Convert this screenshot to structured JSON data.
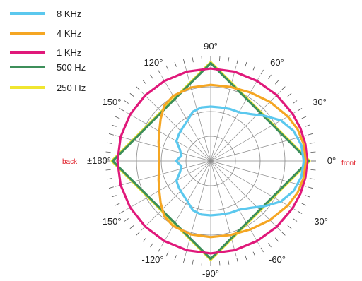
{
  "chart_data": {
    "type": "polar",
    "angle_labels": [
      {
        "angle": 90,
        "text": "90°"
      },
      {
        "angle": 60,
        "text": "60°"
      },
      {
        "angle": 120,
        "text": "120°"
      },
      {
        "angle": 30,
        "text": "30°"
      },
      {
        "angle": 150,
        "text": "150°"
      },
      {
        "angle": 0,
        "text": "0°"
      },
      {
        "angle": 180,
        "text": "±180°"
      },
      {
        "angle": -30,
        "text": "-30°"
      },
      {
        "angle": -150,
        "text": "-150°"
      },
      {
        "angle": -60,
        "text": "-60°"
      },
      {
        "angle": -120,
        "text": "-120°"
      },
      {
        "angle": -90,
        "text": "-90°"
      }
    ],
    "side_labels": {
      "back": "back",
      "front": "front"
    },
    "series": [
      {
        "name": "250 Hz",
        "color": "#f0e631",
        "points": [
          [
            0,
            1.0
          ],
          [
            90,
            1.0
          ],
          [
            180,
            1.0
          ],
          [
            270,
            1.0
          ]
        ]
      },
      {
        "name": "500 Hz",
        "color": "#3d8f5a",
        "points": [
          [
            0,
            0.99
          ],
          [
            90,
            0.99
          ],
          [
            180,
            0.99
          ],
          [
            270,
            0.99
          ]
        ]
      },
      {
        "name": "1 KHz",
        "color": "#e0187a",
        "points": [
          [
            0,
            0.975
          ],
          [
            10,
            0.972
          ],
          [
            20,
            0.965
          ],
          [
            30,
            0.955
          ],
          [
            45,
            0.942
          ],
          [
            60,
            0.935
          ],
          [
            75,
            0.935
          ],
          [
            90,
            0.935
          ],
          [
            105,
            0.935
          ],
          [
            120,
            0.935
          ],
          [
            135,
            0.937
          ],
          [
            150,
            0.94
          ],
          [
            165,
            0.942
          ],
          [
            180,
            0.942
          ],
          [
            195,
            0.942
          ],
          [
            210,
            0.94
          ],
          [
            225,
            0.937
          ],
          [
            240,
            0.935
          ],
          [
            255,
            0.935
          ],
          [
            270,
            0.935
          ],
          [
            285,
            0.935
          ],
          [
            300,
            0.935
          ],
          [
            315,
            0.942
          ],
          [
            330,
            0.955
          ],
          [
            340,
            0.965
          ],
          [
            350,
            0.972
          ],
          [
            360,
            0.975
          ]
        ]
      },
      {
        "name": "4 KHz",
        "color": "#f5a623",
        "points": [
          [
            0,
            0.96
          ],
          [
            10,
            0.955
          ],
          [
            20,
            0.935
          ],
          [
            30,
            0.9
          ],
          [
            45,
            0.845
          ],
          [
            60,
            0.8
          ],
          [
            75,
            0.775
          ],
          [
            90,
            0.77
          ],
          [
            105,
            0.77
          ],
          [
            120,
            0.76
          ],
          [
            130,
            0.73
          ],
          [
            140,
            0.66
          ],
          [
            150,
            0.6
          ],
          [
            160,
            0.56
          ],
          [
            170,
            0.53
          ],
          [
            180,
            0.52
          ],
          [
            190,
            0.53
          ],
          [
            200,
            0.56
          ],
          [
            210,
            0.6
          ],
          [
            220,
            0.66
          ],
          [
            230,
            0.73
          ],
          [
            240,
            0.76
          ],
          [
            255,
            0.77
          ],
          [
            270,
            0.77
          ],
          [
            285,
            0.775
          ],
          [
            300,
            0.8
          ],
          [
            315,
            0.845
          ],
          [
            330,
            0.9
          ],
          [
            340,
            0.935
          ],
          [
            350,
            0.955
          ],
          [
            360,
            0.96
          ]
        ]
      },
      {
        "name": "8 KHz",
        "color": "#5bc8ee",
        "points": [
          [
            0,
            0.94
          ],
          [
            10,
            0.93
          ],
          [
            20,
            0.89
          ],
          [
            30,
            0.82
          ],
          [
            40,
            0.71
          ],
          [
            50,
            0.62
          ],
          [
            60,
            0.57
          ],
          [
            70,
            0.56
          ],
          [
            80,
            0.55
          ],
          [
            90,
            0.55
          ],
          [
            100,
            0.55
          ],
          [
            110,
            0.53
          ],
          [
            120,
            0.47
          ],
          [
            130,
            0.44
          ],
          [
            140,
            0.42
          ],
          [
            150,
            0.4
          ],
          [
            160,
            0.33
          ],
          [
            170,
            0.3
          ],
          [
            180,
            0.35
          ],
          [
            190,
            0.3
          ],
          [
            200,
            0.33
          ],
          [
            210,
            0.4
          ],
          [
            220,
            0.42
          ],
          [
            230,
            0.44
          ],
          [
            240,
            0.47
          ],
          [
            250,
            0.53
          ],
          [
            260,
            0.55
          ],
          [
            270,
            0.55
          ],
          [
            280,
            0.55
          ],
          [
            290,
            0.56
          ],
          [
            300,
            0.57
          ],
          [
            310,
            0.62
          ],
          [
            320,
            0.71
          ],
          [
            330,
            0.82
          ],
          [
            340,
            0.89
          ],
          [
            350,
            0.93
          ],
          [
            360,
            0.94
          ]
        ]
      }
    ],
    "legend": [
      {
        "name": "8 KHz",
        "color": "#5bc8ee"
      },
      {
        "name": "4 KHz",
        "color": "#f5a623"
      },
      {
        "name": "1 KHz",
        "color": "#e0187a"
      },
      {
        "name": "500 Hz",
        "color": "#3d8f5a"
      },
      {
        "name": "250 Hz",
        "color": "#f0e631"
      }
    ],
    "grid": true,
    "legend_position": "top-left"
  }
}
